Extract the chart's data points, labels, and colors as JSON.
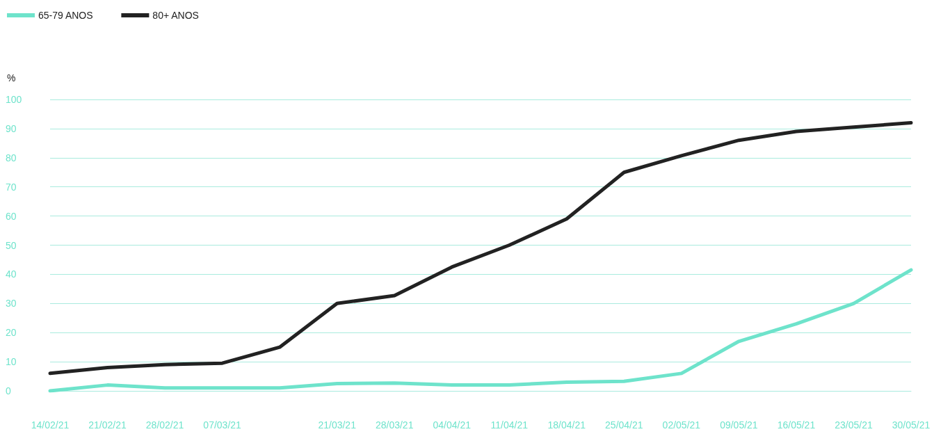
{
  "chart_data": {
    "type": "line",
    "categories": [
      "14/02/21",
      "21/02/21",
      "28/02/21",
      "07/03/21",
      null,
      "21/03/21",
      "28/03/21",
      "04/04/21",
      "11/04/21",
      "18/04/21",
      "25/04/21",
      "02/05/21",
      "09/05/21",
      "16/05/21",
      "23/05/21",
      "30/05/21"
    ],
    "series": [
      {
        "name": "65-79 ANOS",
        "color": "#6ee3cb",
        "values": [
          0,
          2,
          1,
          1,
          1,
          2.5,
          2.7,
          2,
          2,
          3,
          3.3,
          6,
          17,
          23,
          30,
          41.5
        ]
      },
      {
        "name": "80+ ANOS",
        "color": "#222222",
        "values": [
          6,
          8,
          9,
          9.5,
          15,
          30,
          32.7,
          42.5,
          50,
          59,
          75,
          80.7,
          86,
          89,
          90.5,
          92
        ]
      }
    ],
    "ylabel": "%",
    "ylim": [
      0,
      100
    ],
    "yticks": [
      0,
      10,
      20,
      30,
      40,
      50,
      60,
      70,
      80,
      90,
      100
    ],
    "grid": "y",
    "legend": "top left",
    "marker": "none",
    "line_style": "solid"
  }
}
